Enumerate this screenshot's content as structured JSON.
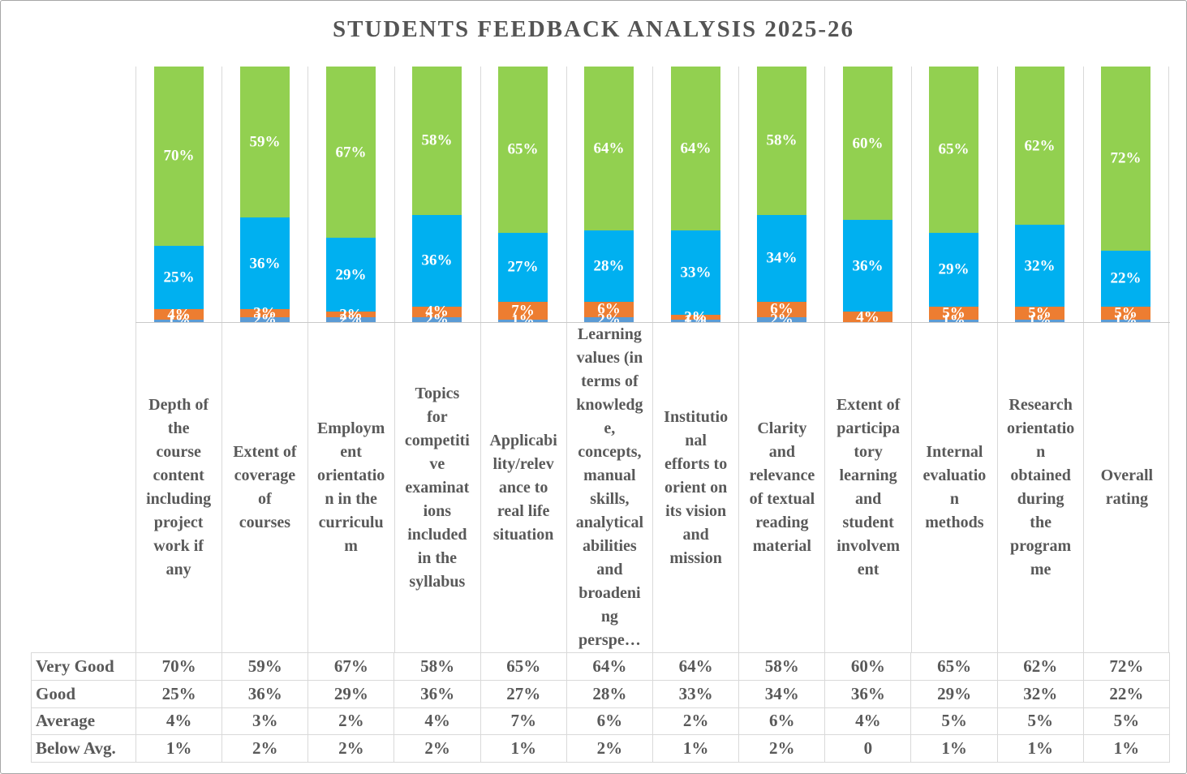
{
  "title": "STUDENTS FEEDBACK ANALYSIS 2025-26",
  "colors": {
    "very_good": "#92D050",
    "good": "#00B0F0",
    "average": "#ED7D31",
    "below_avg": "#5B9BD5",
    "gridline": "#D9D9D9",
    "axis_line": "#C9C9C9",
    "text": "#595959",
    "title_text": "#545454",
    "bar_label_text": "#FFFFFF"
  },
  "chart_data": {
    "type": "bar",
    "stacked": true,
    "orientation": "vertical",
    "value_format": "percent",
    "ylim": [
      0,
      100
    ],
    "y_axis_labels": "hidden",
    "legend": "none (series names shown as data table row headers)",
    "grid": "vertical category separators only",
    "bar_labels": "white bold percentage centered on each segment",
    "categories": [
      "Depth of the course content including project work if any",
      "Extent of coverage of courses",
      "Employment orientation in the curriculum",
      "Topics for competitive examinations included in the syllabus",
      "Applicability/relevance to real life situation",
      "Learning values (in terms of knowledge, concepts, manual skills, analytical abilities and broadening perspe…",
      "Institutional efforts to orient on its vision and mission",
      "Clarity and relevance of textual reading material",
      "Extent of participatory learning and student involvement",
      "Internal evaluation methods",
      "Research orientation obtained during the programme",
      "Overall rating"
    ],
    "category_display_lines": [
      [
        "Depth of",
        "the",
        "course",
        "content",
        "including",
        "project",
        "work if",
        "any"
      ],
      [
        "Extent of",
        "coverage",
        "of",
        "courses"
      ],
      [
        "Employm",
        "ent",
        "orientatio",
        "n in the",
        "curriculu",
        "m"
      ],
      [
        "Topics",
        "for",
        "competiti",
        "ve",
        "examinat",
        "ions",
        "included",
        "in the",
        "syllabus"
      ],
      [
        "Applicabi",
        "lity/relev",
        "ance to",
        "real life",
        "situation"
      ],
      [
        "Learning",
        "values (in",
        "terms of",
        "knowledg",
        "e,",
        "concepts,",
        "manual",
        "skills,",
        "analytical",
        "abilities",
        "and",
        "broadeni",
        "ng",
        "perspe…"
      ],
      [
        "Institutio",
        "nal",
        "efforts to",
        "orient on",
        "its vision",
        "and",
        "mission"
      ],
      [
        "Clarity",
        "and",
        "relevance",
        "of textual",
        "reading",
        "material"
      ],
      [
        "Extent of",
        "participa",
        "tory",
        "learning",
        "and",
        "student",
        "involvem",
        "ent"
      ],
      [
        "Internal",
        "evaluatio",
        "n",
        "methods"
      ],
      [
        "Research",
        "orientatio",
        "n",
        "obtained",
        "during",
        "the",
        "program",
        "me"
      ],
      [
        "Overall",
        "rating"
      ]
    ],
    "series": [
      {
        "name": "Very Good",
        "color": "#92D050",
        "values": [
          70,
          59,
          67,
          58,
          65,
          64,
          64,
          58,
          60,
          65,
          62,
          72
        ]
      },
      {
        "name": "Good",
        "color": "#00B0F0",
        "values": [
          25,
          36,
          29,
          36,
          27,
          28,
          33,
          34,
          36,
          29,
          32,
          22
        ]
      },
      {
        "name": "Average",
        "color": "#ED7D31",
        "values": [
          4,
          3,
          2,
          4,
          7,
          6,
          2,
          6,
          4,
          5,
          5,
          5
        ]
      },
      {
        "name": "Below Avg.",
        "color": "#5B9BD5",
        "values": [
          1,
          2,
          2,
          2,
          1,
          2,
          1,
          2,
          0,
          1,
          1,
          1
        ]
      }
    ],
    "stack_order_bottom_to_top": [
      "Below Avg.",
      "Average",
      "Good",
      "Very Good"
    ]
  },
  "data_table": {
    "rows": [
      {
        "label": "Very Good",
        "values": [
          "70%",
          "59%",
          "67%",
          "58%",
          "65%",
          "64%",
          "64%",
          "58%",
          "60%",
          "65%",
          "62%",
          "72%"
        ]
      },
      {
        "label": "Good",
        "values": [
          "25%",
          "36%",
          "29%",
          "36%",
          "27%",
          "28%",
          "33%",
          "34%",
          "36%",
          "29%",
          "32%",
          "22%"
        ]
      },
      {
        "label": "Average",
        "values": [
          "4%",
          "3%",
          "2%",
          "4%",
          "7%",
          "6%",
          "2%",
          "6%",
          "4%",
          "5%",
          "5%",
          "5%"
        ]
      },
      {
        "label": "Below Avg.",
        "values": [
          "1%",
          "2%",
          "2%",
          "2%",
          "1%",
          "2%",
          "1%",
          "2%",
          "0",
          "1%",
          "1%",
          "1%"
        ]
      }
    ]
  }
}
